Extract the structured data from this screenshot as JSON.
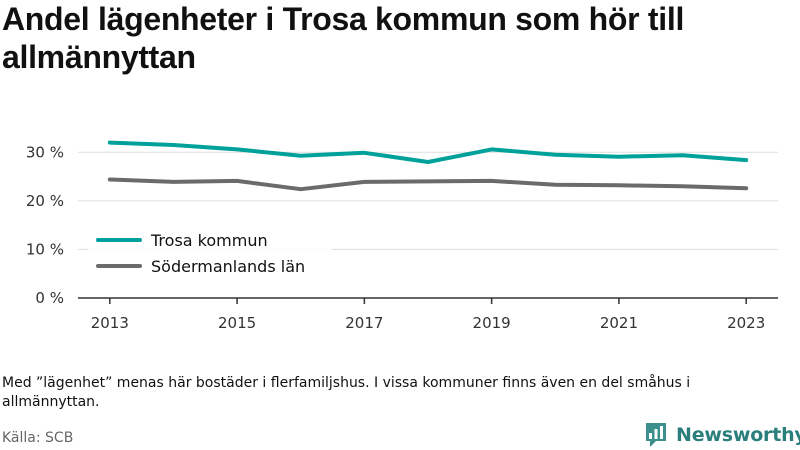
{
  "header": {
    "title": "Andel lägenheter i Trosa kommun som hör till allmännyttan"
  },
  "chart_data": {
    "type": "line",
    "title": "Andel lägenheter i Trosa kommun som hör till allmännyttan",
    "xlabel": "",
    "ylabel": "",
    "x": [
      2013,
      2014,
      2015,
      2016,
      2017,
      2018,
      2019,
      2020,
      2021,
      2022,
      2023
    ],
    "x_ticks": [
      "2013",
      "2015",
      "2017",
      "2019",
      "2021",
      "2023"
    ],
    "y_ticks": [
      "0 %",
      "10 %",
      "20 %",
      "30 %"
    ],
    "ylim": [
      0,
      35
    ],
    "grid": true,
    "legend_position": "lower-left",
    "series": [
      {
        "name": "Trosa kommun",
        "color": "#00a19a",
        "values": [
          32.0,
          31.5,
          30.6,
          29.3,
          29.9,
          28.0,
          30.6,
          29.5,
          29.1,
          29.4,
          28.4
        ]
      },
      {
        "name": "Södermanlands län",
        "color": "#6b6b6b",
        "values": [
          24.4,
          23.9,
          24.1,
          22.4,
          23.9,
          24.0,
          24.1,
          23.3,
          23.2,
          23.0,
          22.6
        ]
      }
    ]
  },
  "footer": {
    "note": "Med ”lägenhet” menas här bostäder i flerfamiljshus. I vissa kommuner finns även en del småhus i allmännyttan.",
    "source": "Källa: SCB",
    "brand": "Newsworthy",
    "brand_color": "#2a7f7d",
    "brand_icon": "bar-chart-badge-icon"
  }
}
